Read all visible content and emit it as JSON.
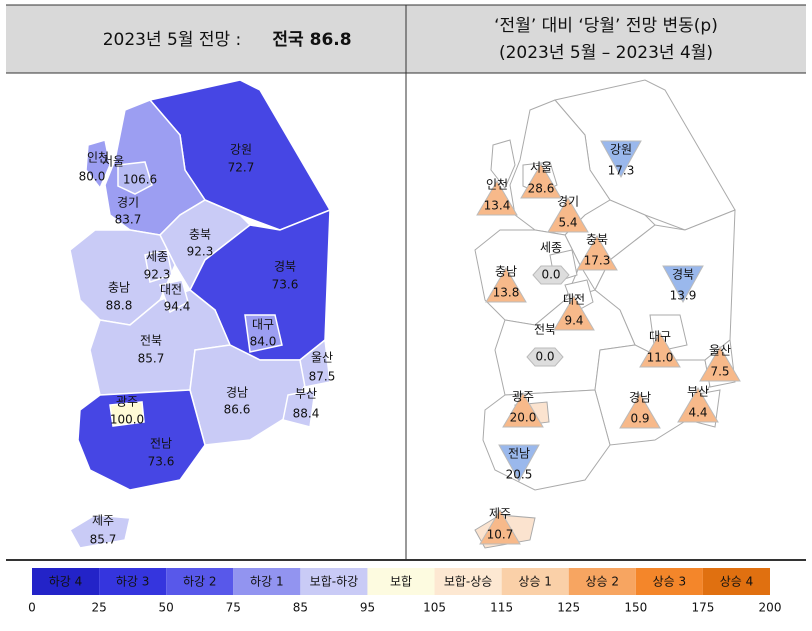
{
  "header": {
    "left_title": "2023년 5월 전망 :",
    "left_total": "전국 86.8",
    "right_title": "‘전월’ 대비 ‘당월’ 전망 변동(p)",
    "right_subtitle": "(2023년 5월 – 2023년 4월)"
  },
  "left_map": {
    "regions": [
      {
        "name": "강원",
        "value": "72.7",
        "color": "#4646e4"
      },
      {
        "name": "경기",
        "value": "83.7",
        "color": "#9c9ef2"
      },
      {
        "name": "충북",
        "value": "92.3",
        "color": "#c9cbf6"
      },
      {
        "name": "충남",
        "value": "88.8",
        "color": "#c9cbf6"
      },
      {
        "name": "경북",
        "value": "73.6",
        "color": "#4646e4"
      },
      {
        "name": "전북",
        "value": "85.7",
        "color": "#c9cbf6"
      },
      {
        "name": "경남",
        "value": "86.6",
        "color": "#c9cbf6"
      },
      {
        "name": "전남",
        "value": "73.6",
        "color": "#4646e4"
      },
      {
        "name": "제주",
        "value": "85.7",
        "color": "#c9cbf6"
      },
      {
        "name": "인천",
        "value": "80.0",
        "color": "#9c9ef2"
      },
      {
        "name": "서울",
        "value": "106.6",
        "color": "#b8bcf4"
      },
      {
        "name": "세종",
        "value": "92.3",
        "color": "#c9cbf6"
      },
      {
        "name": "대전",
        "value": "94.4",
        "color": "#c9cbf6"
      },
      {
        "name": "대구",
        "value": "84.0",
        "color": "#9c9ef2"
      },
      {
        "name": "울산",
        "value": "87.5",
        "color": "#c9cbf6"
      },
      {
        "name": "부산",
        "value": "88.4",
        "color": "#c9cbf6"
      },
      {
        "name": "광주",
        "value": "100.0",
        "color": "#fffbd6"
      }
    ]
  },
  "right_map": {
    "regions": [
      {
        "name": "강원",
        "value": "17.3",
        "direction": "down",
        "color": "#ffffff"
      },
      {
        "name": "경기",
        "value": "5.4",
        "direction": "up",
        "color": "#ffffff"
      },
      {
        "name": "충북",
        "value": "17.3",
        "direction": "up",
        "color": "#ffffff"
      },
      {
        "name": "충남",
        "value": "13.8",
        "direction": "up",
        "color": "#ffffff"
      },
      {
        "name": "경북",
        "value": "13.9",
        "direction": "down",
        "color": "#ffffff"
      },
      {
        "name": "전북",
        "value": "0.0",
        "direction": "flat",
        "color": "#ffffff"
      },
      {
        "name": "경남",
        "value": "0.9",
        "direction": "up",
        "color": "#ffffff"
      },
      {
        "name": "전남",
        "value": "20.5",
        "direction": "down",
        "color": "#ffffff"
      },
      {
        "name": "제주",
        "value": "10.7",
        "direction": "up",
        "color": "#fbe3cf"
      },
      {
        "name": "인천",
        "value": "13.4",
        "direction": "up",
        "color": "#ffffff"
      },
      {
        "name": "서울",
        "value": "28.6",
        "direction": "up",
        "color": "#ffffff"
      },
      {
        "name": "세종",
        "value": "0.0",
        "direction": "flat",
        "color": "#ffffff"
      },
      {
        "name": "대전",
        "value": "9.4",
        "direction": "up",
        "color": "#ffffff"
      },
      {
        "name": "대구",
        "value": "11.0",
        "direction": "up",
        "color": "#ffffff"
      },
      {
        "name": "울산",
        "value": "7.5",
        "direction": "up",
        "color": "#ffffff"
      },
      {
        "name": "부산",
        "value": "4.4",
        "direction": "up",
        "color": "#ffffff"
      },
      {
        "name": "광주",
        "value": "20.0",
        "direction": "up",
        "color": "#fbe3cf"
      }
    ]
  },
  "legend": {
    "items": [
      {
        "label": "하강 4",
        "color": "#2323c8"
      },
      {
        "label": "하강 3",
        "color": "#3535de"
      },
      {
        "label": "하강 2",
        "color": "#5858ea"
      },
      {
        "label": "하강 1",
        "color": "#9294f0"
      },
      {
        "label": "보합-하강",
        "color": "#c9cbf6"
      },
      {
        "label": "보합",
        "color": "#fdfbe0"
      },
      {
        "label": "보합-상승",
        "color": "#fde8d2"
      },
      {
        "label": "상승 1",
        "color": "#fad0a8"
      },
      {
        "label": "상승 2",
        "color": "#f7a561"
      },
      {
        "label": "상승 3",
        "color": "#f4862a"
      },
      {
        "label": "상승 4",
        "color": "#e07010"
      }
    ],
    "ticks": [
      "0",
      "25",
      "50",
      "75",
      "85",
      "95",
      "105",
      "115",
      "125",
      "150",
      "175",
      "200"
    ]
  }
}
